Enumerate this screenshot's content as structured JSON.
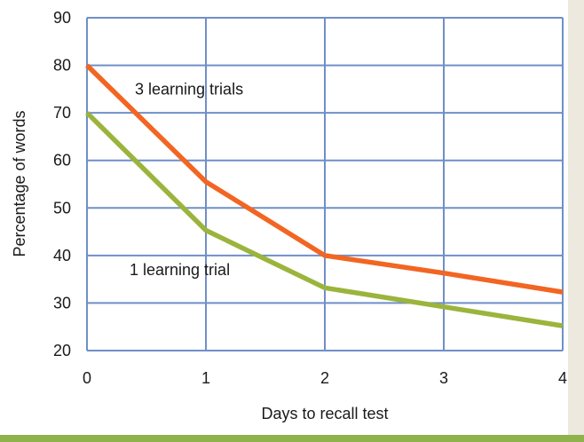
{
  "chart_data": {
    "type": "line",
    "x": [
      0,
      1,
      2,
      3,
      4
    ],
    "xlabel": "Days to recall test",
    "ylabel": "Percentage of words",
    "xlim": [
      0,
      4
    ],
    "ylim": [
      20,
      90
    ],
    "xticks": [
      "0",
      "1",
      "2",
      "3",
      "4"
    ],
    "yticks": [
      "20",
      "30",
      "40",
      "50",
      "60",
      "70",
      "80",
      "90"
    ],
    "grid": true,
    "series": [
      {
        "name": "3 learning trials",
        "color": "#f26522",
        "values": [
          80,
          55.5,
          40,
          36.3,
          32.3
        ]
      },
      {
        "name": "1 learning trial",
        "color": "#9bb43c",
        "values": [
          70,
          45.3,
          33.2,
          29.2,
          25.2
        ]
      }
    ]
  },
  "colors": {
    "grid": "#6f8fc8",
    "background": "#ede9df",
    "bottom_bar": "#8fb34a"
  }
}
